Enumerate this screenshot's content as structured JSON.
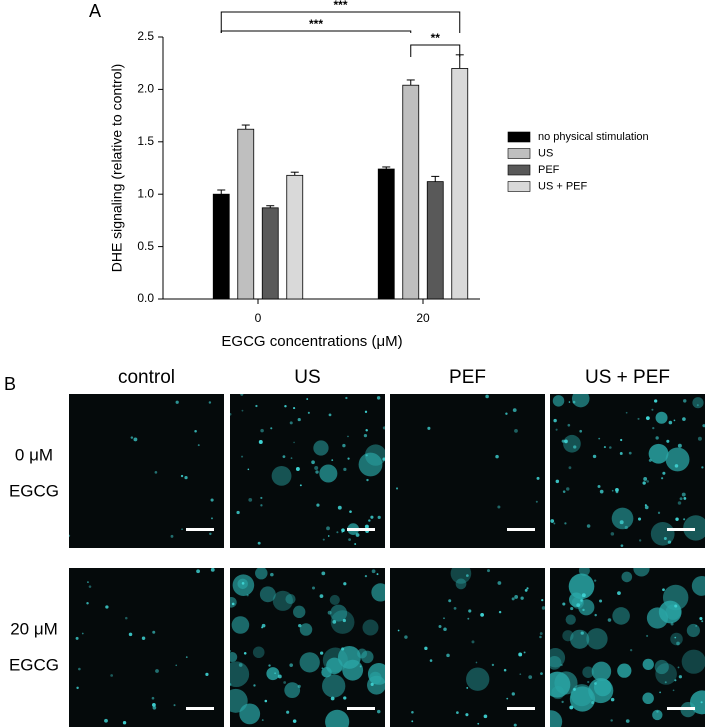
{
  "chart_data": {
    "type": "bar",
    "panel_label": "A",
    "x_label": "EGCG concentrations (μM)",
    "y_label": "DHE signaling (relative to control)",
    "categories": [
      "0",
      "20"
    ],
    "series": [
      {
        "name": "no physical stimulation",
        "color": "#000000",
        "values": [
          1.0,
          1.24
        ],
        "errors": [
          0.04,
          0.02
        ]
      },
      {
        "name": "US",
        "color": "#bfbfbf",
        "values": [
          1.62,
          2.04
        ],
        "errors": [
          0.04,
          0.05
        ]
      },
      {
        "name": "PEF",
        "color": "#595959",
        "values": [
          0.87,
          1.12
        ],
        "errors": [
          0.02,
          0.05
        ]
      },
      {
        "name": "US + PEF",
        "color": "#d9d9d9",
        "values": [
          1.18,
          2.2
        ],
        "errors": [
          0.03,
          0.13
        ]
      }
    ],
    "ylim": [
      0,
      2.5
    ],
    "yticks": [
      {
        "value": 0,
        "label": "0.0"
      },
      {
        "value": 0.5,
        "label": "0.5"
      },
      {
        "value": 1,
        "label": "1.0"
      },
      {
        "value": 1.5,
        "label": "1.5"
      },
      {
        "value": 2,
        "label": "2.0"
      },
      {
        "value": 2.5,
        "label": "2.5"
      }
    ],
    "annotations": [
      "***",
      "***",
      "**"
    ],
    "grid": false
  },
  "panel_b": {
    "label": "B",
    "columns": [
      "control",
      "US",
      "PEF",
      "US + PEF"
    ],
    "rows": [
      {
        "concentration": "0 μM",
        "compound": "EGCG"
      },
      {
        "concentration": "20 μM",
        "compound": "EGCG"
      }
    ]
  }
}
